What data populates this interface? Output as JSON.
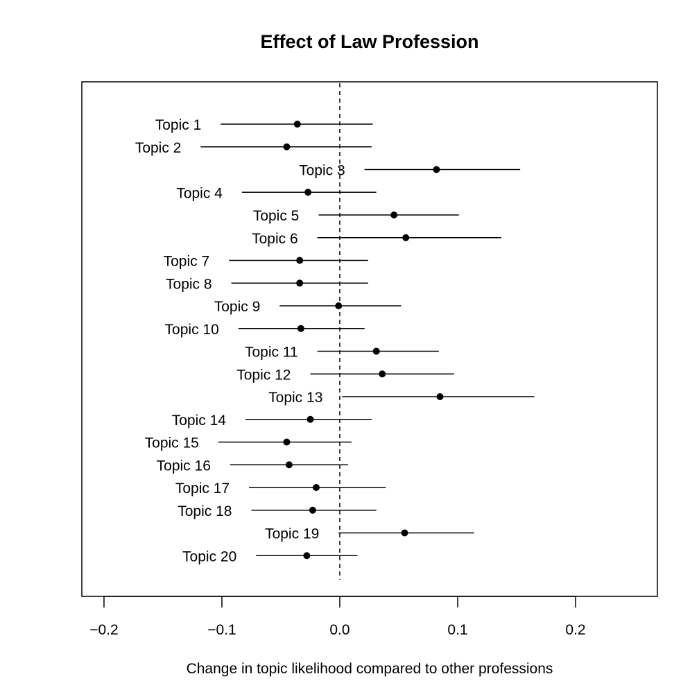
{
  "chart_data": {
    "type": "forest",
    "title": "Effect of Law Profession",
    "xlabel": "Change in topic likelihood compared to other professions",
    "ylabel": "",
    "xlim": [
      -0.2188,
      0.2694
    ],
    "xticks": [
      -0.2,
      -0.1,
      0.0,
      0.1,
      0.2
    ],
    "xtick_labels": [
      "−0.2",
      "−0.1",
      "0.0",
      "0.1",
      "0.2"
    ],
    "reference_line": {
      "x": 0.0,
      "style": "dashed"
    },
    "grid": false,
    "series": [
      {
        "label": "Topic 1",
        "estimate": -0.036,
        "lower": -0.101,
        "upper": 0.028
      },
      {
        "label": "Topic 2",
        "estimate": -0.045,
        "lower": -0.118,
        "upper": 0.027
      },
      {
        "label": "Topic 3",
        "estimate": 0.082,
        "lower": 0.021,
        "upper": 0.153
      },
      {
        "label": "Topic 4",
        "estimate": -0.027,
        "lower": -0.083,
        "upper": 0.031
      },
      {
        "label": "Topic 5",
        "estimate": 0.046,
        "lower": -0.018,
        "upper": 0.101
      },
      {
        "label": "Topic 6",
        "estimate": 0.056,
        "lower": -0.019,
        "upper": 0.137
      },
      {
        "label": "Topic 7",
        "estimate": -0.034,
        "lower": -0.094,
        "upper": 0.024
      },
      {
        "label": "Topic 8",
        "estimate": -0.034,
        "lower": -0.092,
        "upper": 0.024
      },
      {
        "label": "Topic 9",
        "estimate": -0.001,
        "lower": -0.051,
        "upper": 0.052
      },
      {
        "label": "Topic 10",
        "estimate": -0.033,
        "lower": -0.086,
        "upper": 0.021
      },
      {
        "label": "Topic 11",
        "estimate": 0.031,
        "lower": -0.019,
        "upper": 0.084
      },
      {
        "label": "Topic 12",
        "estimate": 0.036,
        "lower": -0.025,
        "upper": 0.097
      },
      {
        "label": "Topic 13",
        "estimate": 0.085,
        "lower": 0.002,
        "upper": 0.165
      },
      {
        "label": "Topic 14",
        "estimate": -0.025,
        "lower": -0.08,
        "upper": 0.027
      },
      {
        "label": "Topic 15",
        "estimate": -0.045,
        "lower": -0.103,
        "upper": 0.01
      },
      {
        "label": "Topic 16",
        "estimate": -0.043,
        "lower": -0.093,
        "upper": 0.007
      },
      {
        "label": "Topic 17",
        "estimate": -0.02,
        "lower": -0.077,
        "upper": 0.039
      },
      {
        "label": "Topic 18",
        "estimate": -0.023,
        "lower": -0.075,
        "upper": 0.031
      },
      {
        "label": "Topic 19",
        "estimate": 0.055,
        "lower": -0.001,
        "upper": 0.114
      },
      {
        "label": "Topic 20",
        "estimate": -0.028,
        "lower": -0.071,
        "upper": 0.015
      }
    ]
  }
}
